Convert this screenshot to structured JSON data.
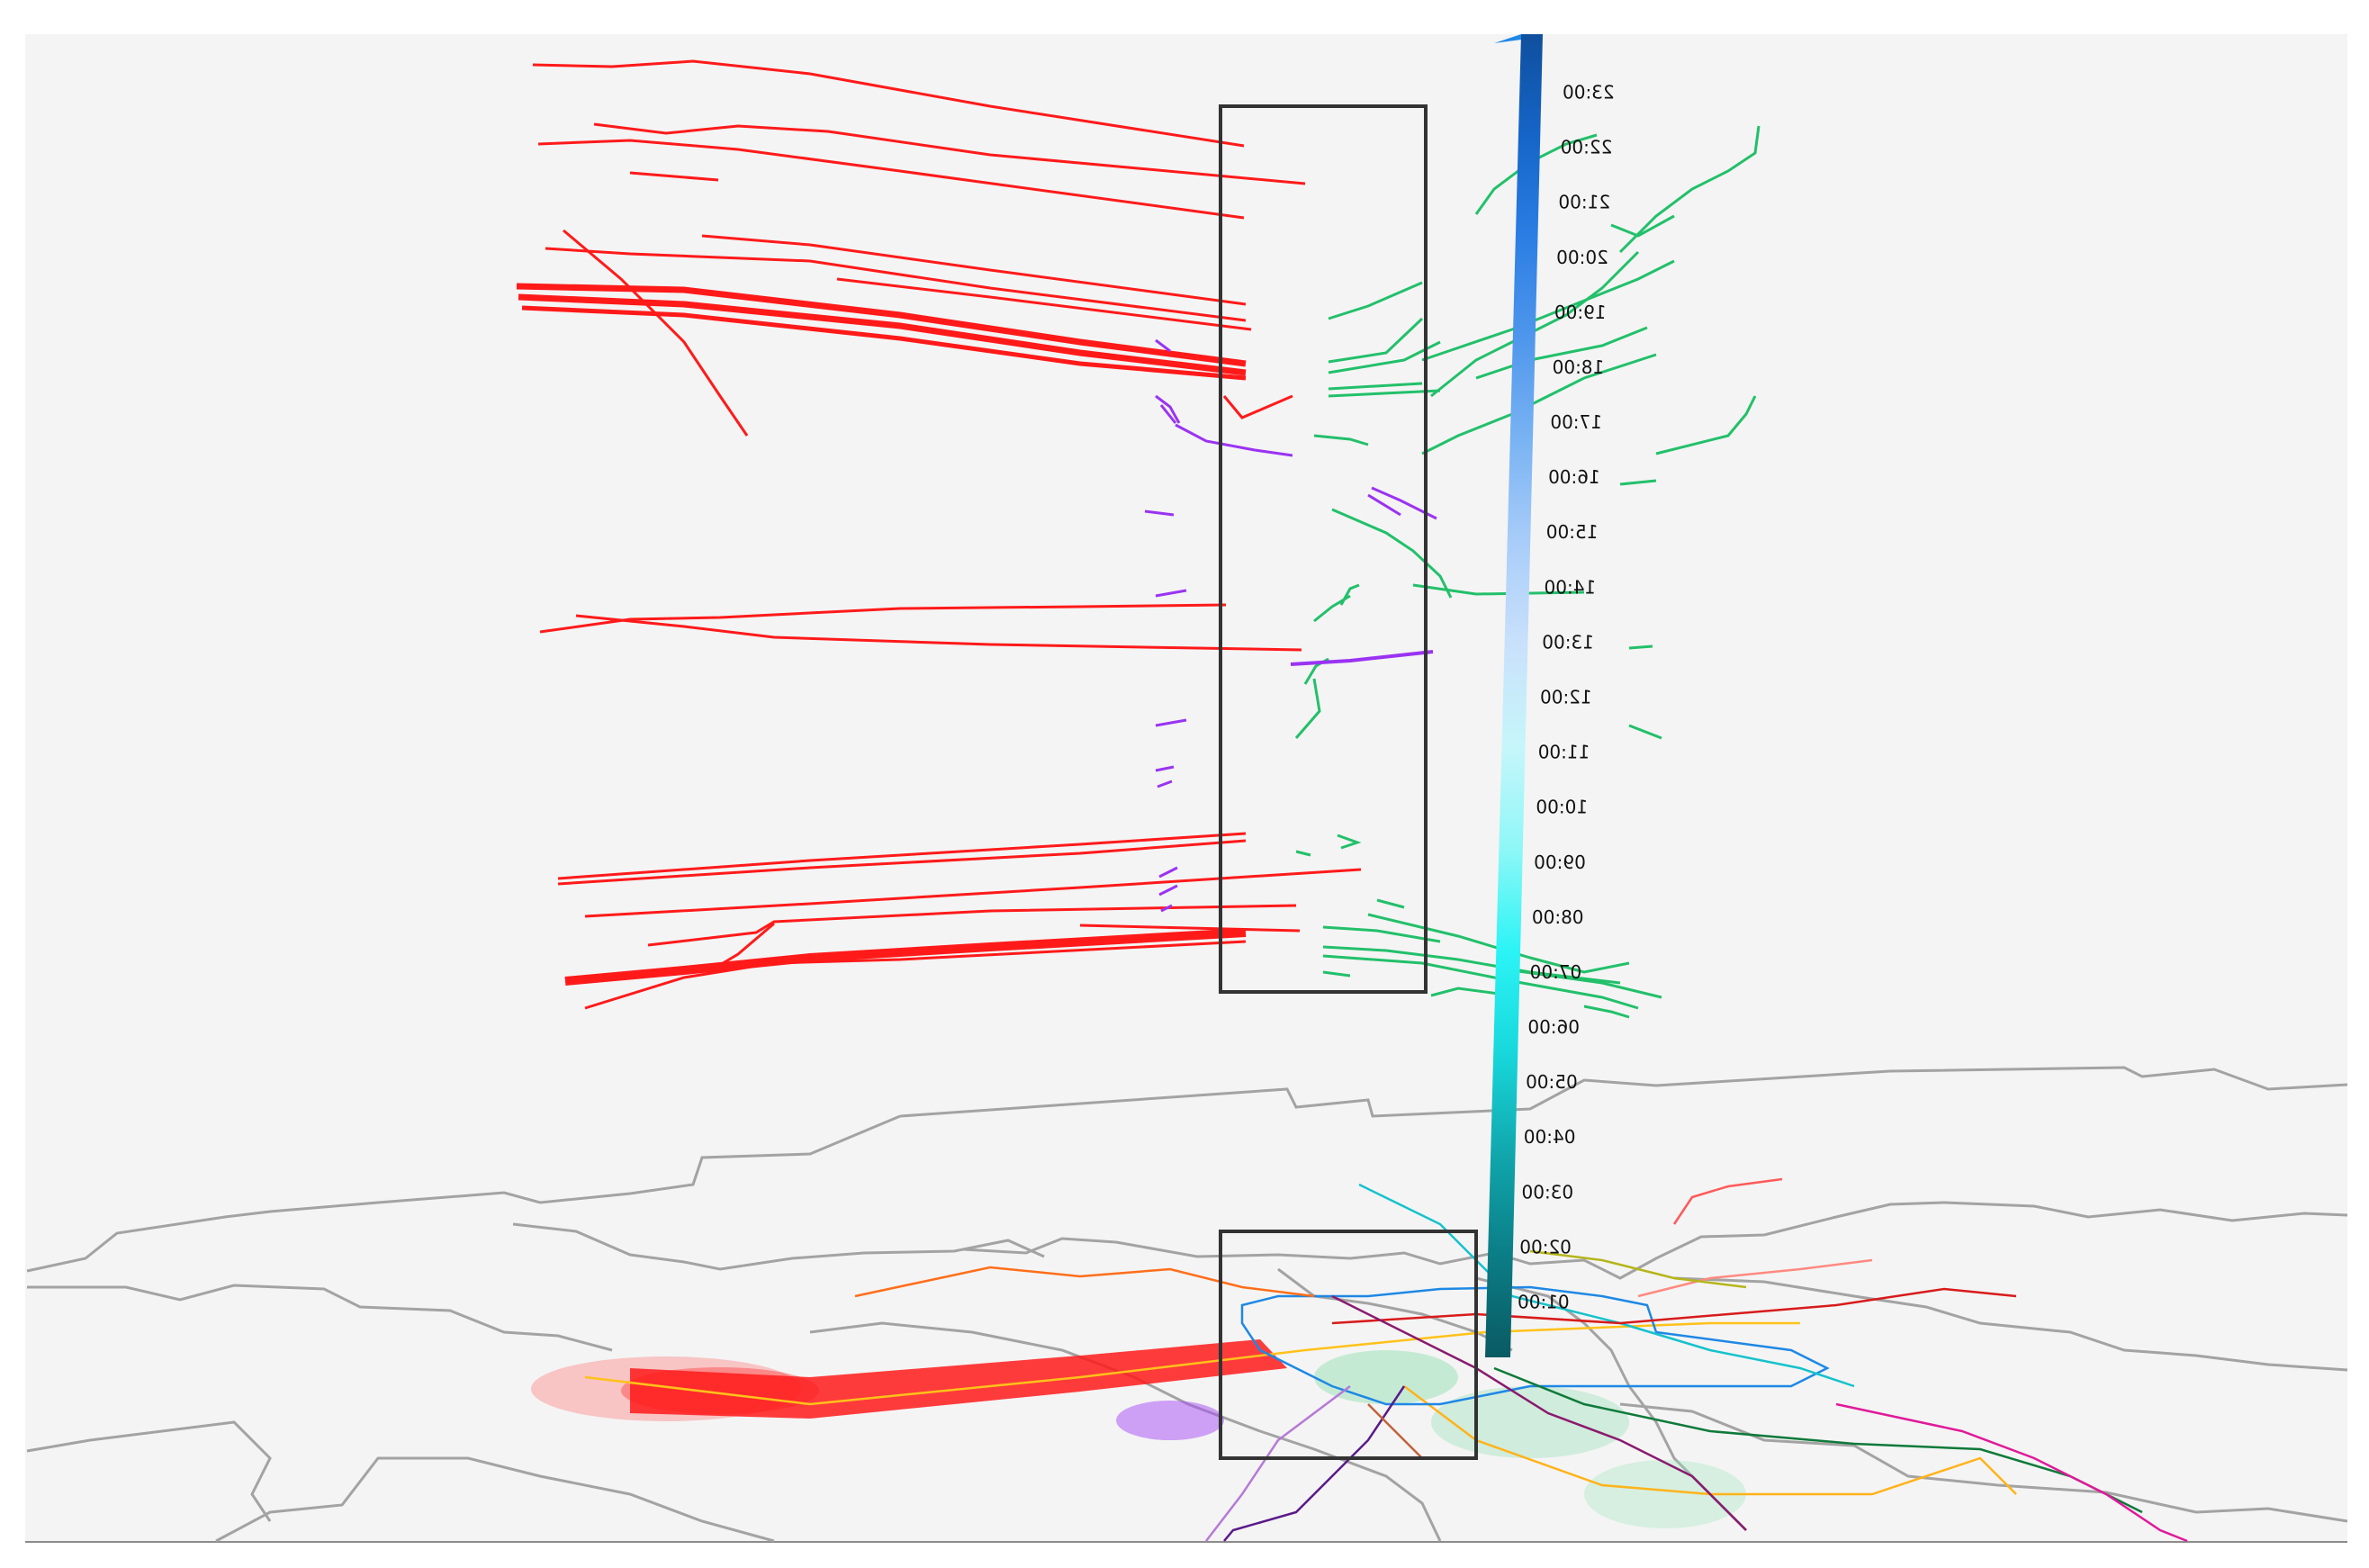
{
  "time_axis": {
    "tick_labels": [
      "01:00",
      "02:00",
      "03:00",
      "04:00",
      "05:00",
      "06:00",
      "07:00",
      "08:00",
      "09:00",
      "10:00",
      "11:00",
      "12:00",
      "13:00",
      "14:00",
      "15:00",
      "16:00",
      "17:00",
      "18:00",
      "19:00",
      "20:00",
      "21:00",
      "22:00",
      "23:00"
    ],
    "gradient_colors": [
      "#0a5a63",
      "#0b7d86",
      "#10a7ad",
      "#18d8dc",
      "#2cf4f6",
      "#8ff7f7",
      "#c6f6fa",
      "#c9e1fb",
      "#a9cdf9",
      "#7ab3f3",
      "#4f97ec",
      "#2c7ee4",
      "#1565c8",
      "#0f4f9e"
    ]
  },
  "colors": {
    "background": "#f4f4f4",
    "border": "#9a9a9a",
    "trajectory_red": "#ff1a1a",
    "trajectory_green": "#22c06a",
    "trajectory_purple": "#9a33f2",
    "highlight_box": "#333333"
  }
}
